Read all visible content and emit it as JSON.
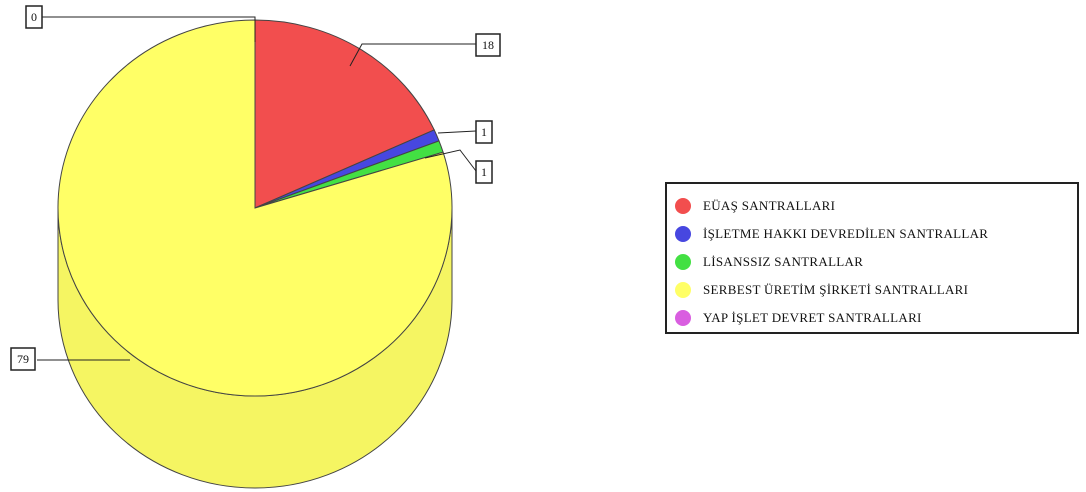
{
  "chart_data": {
    "type": "pie",
    "title": "",
    "categories": [
      "EÜAŞ SANTRALLARI",
      "İŞLETME HAKKI DEVREDİLEN SANTRALLAR",
      "LİSANSSIZ SANTRALLAR",
      "SERBEST ÜRETİM ŞİRKETİ SANTRALLARI",
      "YAP İŞLET DEVRET SANTRALLARI"
    ],
    "values": [
      18,
      1,
      1,
      79,
      0
    ],
    "data_labels": [
      "18",
      "1",
      "1",
      "79",
      "0"
    ],
    "colors": [
      "#f24e4e",
      "#4747e0",
      "#43e043",
      "#ffff66",
      "#d95ee0"
    ],
    "legend_placement": "right",
    "style": "3d"
  }
}
